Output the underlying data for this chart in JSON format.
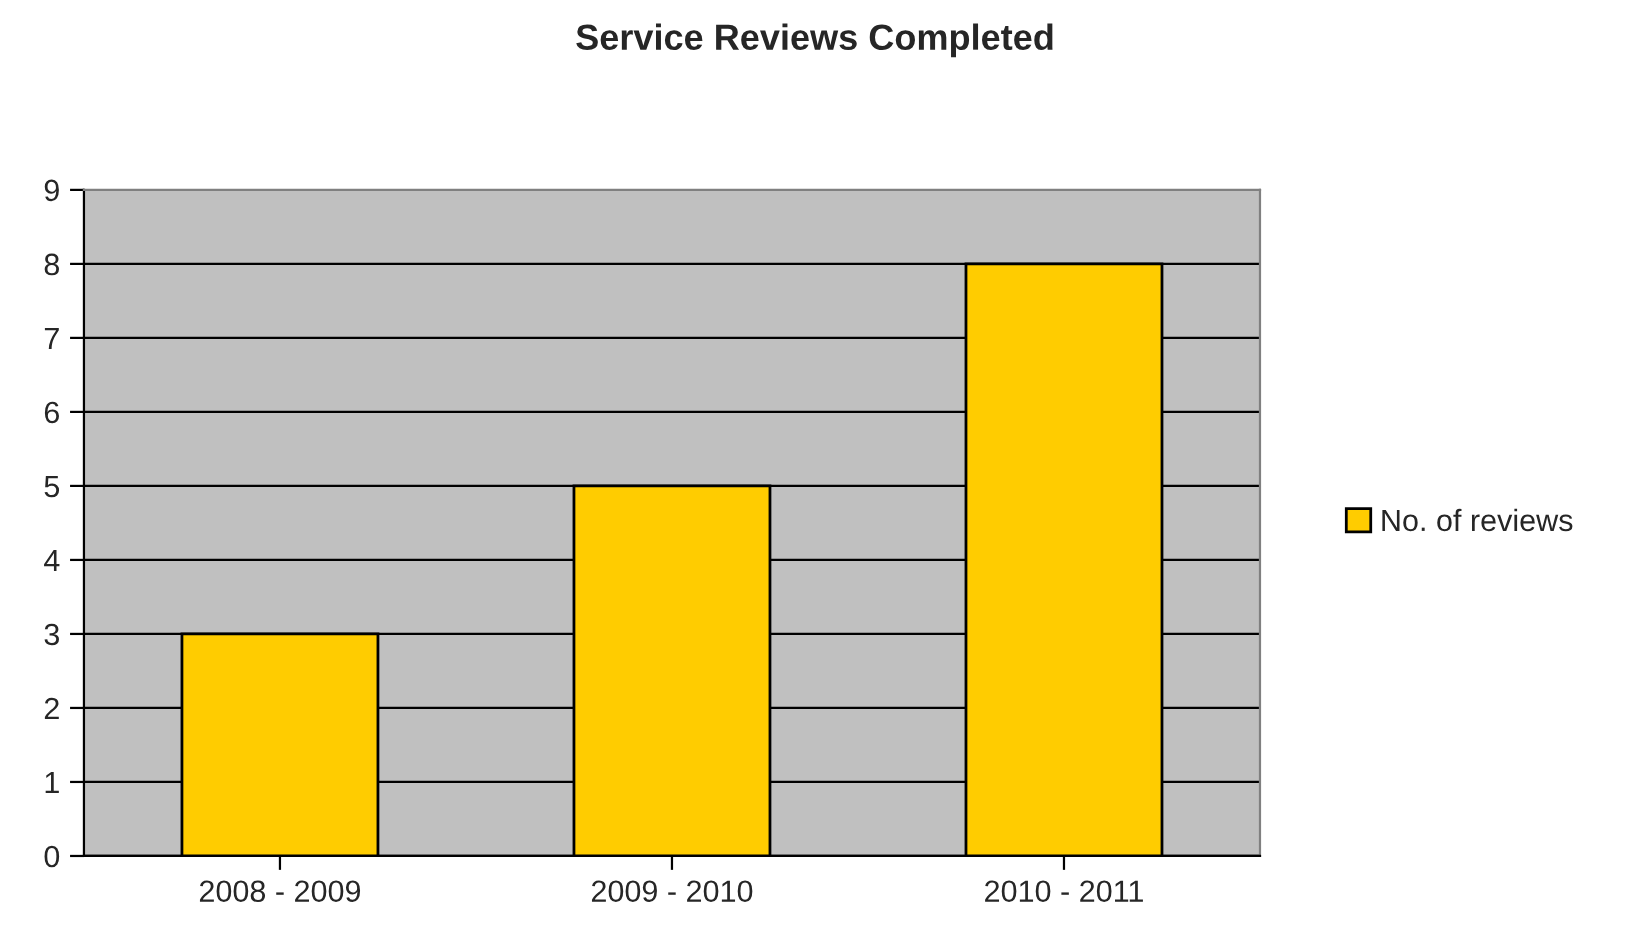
{
  "chart_data": {
    "type": "bar",
    "title": "Service Reviews Completed",
    "categories": [
      "2008 - 2009",
      "2009 - 2010",
      "2010 - 2011"
    ],
    "series": [
      {
        "name": "No. of reviews",
        "color": "#ffcc00",
        "values": [
          3,
          5,
          8
        ]
      }
    ],
    "ylim": [
      0,
      9
    ],
    "yticks": [
      0,
      1,
      2,
      3,
      4,
      5,
      6,
      7,
      8,
      9
    ],
    "grid": "y",
    "legend": "right"
  }
}
